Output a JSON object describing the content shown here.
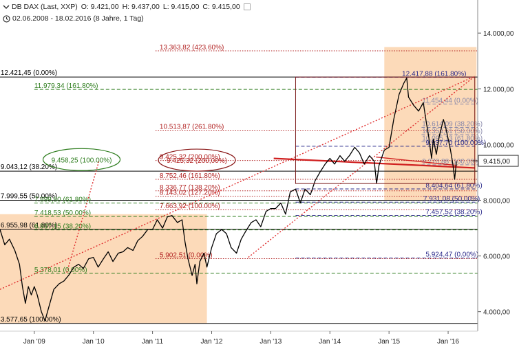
{
  "header": {
    "instrument": "DB DAX (Last, XXP)",
    "open": "O: 9.421,00",
    "high": "H: 9.437,00",
    "low": "L: 9.415,00",
    "close": "C: 9.415,00",
    "range": "02.06.2008 - 18.02.2016 (8 Jahre, 1 Tag)"
  },
  "chart_data": {
    "type": "line",
    "ylim": [
      3400,
      14300
    ],
    "xlim": [
      2008.42,
      2016.5
    ],
    "y_ticks": [
      {
        "v": 14000,
        "label": "14.000,00"
      },
      {
        "v": 12000,
        "label": "12.000,00"
      },
      {
        "v": 10000,
        "label": "10.000,00"
      },
      {
        "v": 8000,
        "label": "8.000,00"
      },
      {
        "v": 6000,
        "label": "6.000,00"
      },
      {
        "v": 4000,
        "label": "4.000,00"
      }
    ],
    "x_ticks": [
      {
        "x": 2009.0,
        "label": "Jan '09"
      },
      {
        "x": 2010.0,
        "label": "Jan '10"
      },
      {
        "x": 2011.0,
        "label": "Jan '11"
      },
      {
        "x": 2012.0,
        "label": "Jan '12"
      },
      {
        "x": 2013.0,
        "label": "Jan '13"
      },
      {
        "x": 2014.0,
        "label": "Jan '14"
      },
      {
        "x": 2015.0,
        "label": "Jan '15"
      },
      {
        "x": 2016.0,
        "label": "Jan '16"
      }
    ],
    "last_price": {
      "y": 9415,
      "label": "9.415,00"
    },
    "series": [
      {
        "color": "#000000",
        "points": [
          [
            2008.42,
            6950
          ],
          [
            2008.5,
            6400
          ],
          [
            2008.58,
            6600
          ],
          [
            2008.67,
            6200
          ],
          [
            2008.75,
            5700
          ],
          [
            2008.8,
            4900
          ],
          [
            2008.85,
            4300
          ],
          [
            2008.9,
            4900
          ],
          [
            2008.95,
            4600
          ],
          [
            2009.0,
            4900
          ],
          [
            2009.05,
            4600
          ],
          [
            2009.12,
            4000
          ],
          [
            2009.18,
            3670
          ],
          [
            2009.25,
            4200
          ],
          [
            2009.33,
            4800
          ],
          [
            2009.42,
            5000
          ],
          [
            2009.5,
            5100
          ],
          [
            2009.58,
            5300
          ],
          [
            2009.67,
            5600
          ],
          [
            2009.75,
            5700
          ],
          [
            2009.83,
            5550
          ],
          [
            2009.92,
            5900
          ],
          [
            2010.0,
            5950
          ],
          [
            2010.08,
            5600
          ],
          [
            2010.17,
            5900
          ],
          [
            2010.25,
            6150
          ],
          [
            2010.33,
            5800
          ],
          [
            2010.42,
            6100
          ],
          [
            2010.5,
            6150
          ],
          [
            2010.58,
            6300
          ],
          [
            2010.67,
            6200
          ],
          [
            2010.75,
            6550
          ],
          [
            2010.83,
            6700
          ],
          [
            2010.92,
            6950
          ],
          [
            2011.0,
            6950
          ],
          [
            2011.08,
            7300
          ],
          [
            2011.17,
            7000
          ],
          [
            2011.25,
            7400
          ],
          [
            2011.33,
            7450
          ],
          [
            2011.42,
            7200
          ],
          [
            2011.5,
            7300
          ],
          [
            2011.55,
            6500
          ],
          [
            2011.6,
            5900
          ],
          [
            2011.67,
            5300
          ],
          [
            2011.72,
            5700
          ],
          [
            2011.75,
            5000
          ],
          [
            2011.8,
            5800
          ],
          [
            2011.87,
            6100
          ],
          [
            2011.92,
            5600
          ],
          [
            2012.0,
            6300
          ],
          [
            2012.08,
            6800
          ],
          [
            2012.17,
            6950
          ],
          [
            2012.25,
            6800
          ],
          [
            2012.33,
            6300
          ],
          [
            2012.42,
            6100
          ],
          [
            2012.5,
            6600
          ],
          [
            2012.58,
            6900
          ],
          [
            2012.67,
            7200
          ],
          [
            2012.75,
            7300
          ],
          [
            2012.83,
            7050
          ],
          [
            2012.92,
            7600
          ],
          [
            2013.0,
            7700
          ],
          [
            2013.08,
            7700
          ],
          [
            2013.17,
            7900
          ],
          [
            2013.25,
            7500
          ],
          [
            2013.33,
            8300
          ],
          [
            2013.42,
            8400
          ],
          [
            2013.5,
            7900
          ],
          [
            2013.58,
            8400
          ],
          [
            2013.67,
            8200
          ],
          [
            2013.75,
            8700
          ],
          [
            2013.83,
            9000
          ],
          [
            2013.92,
            9300
          ],
          [
            2014.0,
            9500
          ],
          [
            2014.08,
            9300
          ],
          [
            2014.17,
            9600
          ],
          [
            2014.25,
            9400
          ],
          [
            2014.33,
            9600
          ],
          [
            2014.42,
            9900
          ],
          [
            2014.5,
            9700
          ],
          [
            2014.58,
            9300
          ],
          [
            2014.67,
            9600
          ],
          [
            2014.75,
            9400
          ],
          [
            2014.79,
            8600
          ],
          [
            2014.83,
            9250
          ],
          [
            2014.92,
            9800
          ],
          [
            2015.0,
            9900
          ],
          [
            2015.08,
            10900
          ],
          [
            2015.17,
            11800
          ],
          [
            2015.25,
            12200
          ],
          [
            2015.3,
            12390
          ],
          [
            2015.33,
            11700
          ],
          [
            2015.42,
            11400
          ],
          [
            2015.5,
            11200
          ],
          [
            2015.58,
            11500
          ],
          [
            2015.63,
            10800
          ],
          [
            2015.67,
            10300
          ],
          [
            2015.72,
            9500
          ],
          [
            2015.75,
            10200
          ],
          [
            2015.8,
            9650
          ],
          [
            2015.85,
            10300
          ],
          [
            2015.92,
            10900
          ],
          [
            2015.96,
            10600
          ],
          [
            2016.0,
            10200
          ],
          [
            2016.04,
            9800
          ],
          [
            2016.08,
            9300
          ],
          [
            2016.11,
            8750
          ],
          [
            2016.14,
            9400
          ]
        ]
      }
    ],
    "shaded_regions": [
      {
        "x0": 2008.42,
        "x1": 2011.92,
        "y0": 3577.65,
        "y1": 7500
      },
      {
        "x0": 2014.92,
        "x1": 2016.48,
        "y0": 8000,
        "y1": 13500
      }
    ],
    "levels": [
      {
        "v": 13363.82,
        "label": "13.363,82 (423.60%)",
        "color": "#b22222",
        "dash": true,
        "x0": 2011.05,
        "lx": 2011.12
      },
      {
        "v": 12421.45,
        "label": "12.421,45 (0.00%)",
        "color": "#000000",
        "dash": false,
        "x0": 2008.42,
        "lx": 2008.43,
        "above": true
      },
      {
        "v": 12417.88,
        "label": "12.417,88 (161.80%)",
        "color": "#2a2a8a",
        "dash": true,
        "x0": 2013.42,
        "lx": 2015.22
      },
      {
        "v": 11979.34,
        "label": "11.979,34 (161.80%)",
        "color": "#2e7d1e",
        "dash": true,
        "x0": 2009.0,
        "lx": 2009.0
      },
      {
        "v": 11454.44,
        "label": "11.454,44 (0.00%)",
        "color": "#8888aa",
        "dash": true,
        "x0": 2015.55,
        "lx": 2015.56
      },
      {
        "v": 10614.09,
        "label": "10.614,09 (38.20%)",
        "color": "#8888aa",
        "dash": true,
        "x0": 2015.55,
        "lx": 2015.56
      },
      {
        "v": 10513.87,
        "label": "10.513,87 (261.80%)",
        "color": "#b22222",
        "dash": true,
        "x0": 2011.05,
        "lx": 2011.12
      },
      {
        "v": 10354.61,
        "label": "10.354,61 (50.00%)",
        "color": "#8888aa",
        "dash": true,
        "x0": 2015.55,
        "lx": 2015.56
      },
      {
        "v": 10095.13,
        "label": "10.095,13 (61.80%)",
        "color": "#8888aa",
        "dash": true,
        "x0": 2015.55,
        "lx": 2015.56
      },
      {
        "v": 9937.7,
        "label": "9.937,70 (100.00%)",
        "color": "#2a2a8a",
        "dash": true,
        "x0": 2013.42,
        "lx": 2015.62
      },
      {
        "v": 9425.32,
        "label": "9.425,32 (200,00%)",
        "color": "#b22222",
        "dash": true,
        "x0": 2011.05,
        "lx": 2011.12
      },
      {
        "v": 9270.88,
        "label": "9.270,88 (100.00%)",
        "color": "#8888aa",
        "dash": true,
        "x0": 2015.55,
        "lx": 2015.56
      },
      {
        "v": 9043.12,
        "label": "9.043,12 (38.20%)",
        "color": "#000000",
        "dash": false,
        "x0": 2008.42,
        "lx": 2008.43,
        "above": true
      },
      {
        "v": 8752.46,
        "label": "8.752,46 (161.80%)",
        "color": "#b22222",
        "dash": true,
        "x0": 2011.05,
        "lx": 2011.12
      },
      {
        "v": 8404.64,
        "label": "8.404,64 (61.80%)",
        "color": "#2a2a8a",
        "dash": true,
        "x0": 2013.42,
        "lx": 2015.62
      },
      {
        "v": 8336.77,
        "label": "8.336,77 (138.20%)",
        "color": "#b22222",
        "dash": true,
        "x0": 2011.05,
        "lx": 2011.12
      },
      {
        "v": 8143.02,
        "label": "8.143,02 (127.20%)",
        "color": "#b22222",
        "dash": true,
        "x0": 2011.05,
        "lx": 2011.12
      },
      {
        "v": 7999.55,
        "label": "7.999,55 (50.00%)",
        "color": "#000000",
        "dash": false,
        "x0": 2008.42,
        "lx": 2008.43,
        "above": true
      },
      {
        "v": 7931.08,
        "label": "7.931,08 (50.00%)",
        "color": "#2a2a8a",
        "dash": true,
        "x0": 2013.42,
        "lx": 2015.58
      },
      {
        "v": 7899.8,
        "label": "7.899,80 (61.80%)",
        "color": "#2e7d1e",
        "dash": true,
        "x0": 2009.0,
        "lx": 2009.0
      },
      {
        "v": 7663.92,
        "label": "7.663,92 (100.00%)",
        "color": "#b22222",
        "dash": true,
        "x0": 2011.05,
        "lx": 2011.12
      },
      {
        "v": 7457.52,
        "label": "7.457,52 (38.20%)",
        "color": "#2a2a8a",
        "dash": true,
        "x0": 2013.42,
        "lx": 2015.62
      },
      {
        "v": 7418.53,
        "label": "7.418,53 (50.00%)",
        "color": "#2e7d1e",
        "dash": true,
        "x0": 2009.0,
        "lx": 2009.0
      },
      {
        "v": 6955.98,
        "label": "6.955,98 (61.80%)",
        "color": "#000000",
        "dash": false,
        "x0": 2008.42,
        "lx": 2008.43,
        "above": true
      },
      {
        "v": 6937.15,
        "label": "6.937,15 (38.20%)",
        "color": "#2e7d1e",
        "dash": true,
        "x0": 2009.0,
        "lx": 2009.0
      },
      {
        "v": 5924.47,
        "label": "5.924,47 (0.00%)",
        "color": "#2a2a8a",
        "dash": true,
        "x0": 2013.42,
        "lx": 2015.62
      },
      {
        "v": 5902.51,
        "label": "5.902,51 (0.00%)",
        "color": "#b22222",
        "dash": true,
        "x0": 2011.05,
        "lx": 2011.12
      },
      {
        "v": 5378.01,
        "label": "5.378,01 (0.00%)",
        "color": "#2e7d1e",
        "dash": true,
        "x0": 2009.0,
        "lx": 2009.0
      },
      {
        "v": 3577.65,
        "label": "3.577,65 (100.00%)",
        "color": "#000000",
        "dash": false,
        "x0": 2008.42,
        "lx": 2008.43,
        "above": true
      }
    ],
    "trendlines": [
      {
        "x1": 2008.42,
        "y1": 4800,
        "x2": 2016.45,
        "y2": 12450,
        "color": "#e03030",
        "dash": true,
        "width": 1.4
      },
      {
        "x1": 2009.55,
        "y1": 5400,
        "x2": 2010.1,
        "y2": 9450,
        "color": "#e03030",
        "dash": true,
        "width": 1.4
      },
      {
        "x1": 2012.62,
        "y1": 5950,
        "x2": 2016.45,
        "y2": 12450,
        "color": "#e03030",
        "dash": true,
        "width": 1.4
      },
      {
        "x1": 2013.05,
        "y1": 9500,
        "x2": 2016.45,
        "y2": 9160,
        "color": "#d02020",
        "dash": false,
        "width": 2.2
      },
      {
        "x1": 2014.78,
        "y1": 9550,
        "x2": 2016.15,
        "y2": 9250,
        "color": "#d02020",
        "dash": false,
        "width": 1.4
      }
    ],
    "ellipses": [
      {
        "cx": 2009.8,
        "cy": 9460,
        "text": "9.458,25 (100.00%)",
        "color": "#2e7d1e",
        "text_color": "#2e7d1e"
      },
      {
        "cx": 2011.75,
        "cy": 9440,
        "text": "9.425,32 (200,00%)",
        "color": "#8b1a1a",
        "text_color": "#b22222"
      }
    ],
    "boxes": [
      {
        "x0": 2013.42,
        "x1": 2016.45,
        "y0": 8600,
        "y1": 12421,
        "color": "#7a1a1a"
      }
    ]
  }
}
